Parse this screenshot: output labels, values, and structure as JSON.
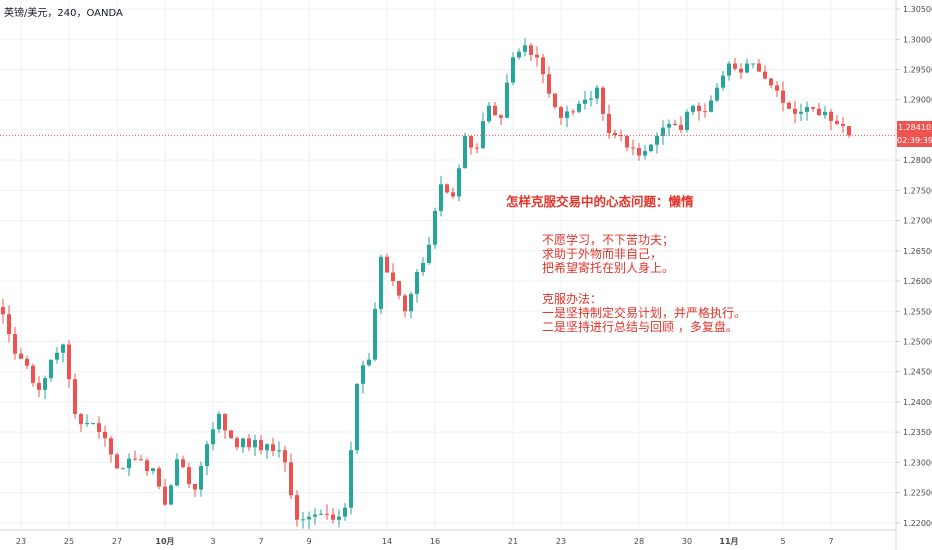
{
  "symbol": {
    "label": "英镑/美元，240，OANDA"
  },
  "annotations": {
    "title": "怎样克服交易中的心态问题：懒惰",
    "lines": [
      "不愿学习，不下苦功夫；",
      "求助于外物而非自己，",
      "把希望寄托在别人身上。",
      "",
      "克服办法：",
      "一是坚持制定交易计划，并严格执行。",
      "二是坚持进行总结与回顾 ，多复盘。"
    ]
  },
  "price_tag": {
    "price": "1.28410",
    "countdown": "02:39:39"
  },
  "colors": {
    "up": "#26a69a",
    "down": "#ef5350",
    "grid": "#eef0f3",
    "axis_text": "#4a4a4a",
    "annotation": "#e5332a",
    "last_price_line": "#ef5350"
  },
  "chart_data": {
    "type": "candlestick",
    "interval": "240",
    "source": "OANDA",
    "ylim": [
      1.2155,
      1.3065
    ],
    "y_ticks": [
      1.22,
      1.225,
      1.23,
      1.235,
      1.24,
      1.245,
      1.25,
      1.255,
      1.26,
      1.265,
      1.27,
      1.275,
      1.28,
      1.285,
      1.29,
      1.295,
      1.3,
      1.305
    ],
    "x_ticks": [
      {
        "label": "23",
        "bar": 3
      },
      {
        "label": "25",
        "bar": 11
      },
      {
        "label": "27",
        "bar": 19
      },
      {
        "label": "10月",
        "bar": 27
      },
      {
        "label": "3",
        "bar": 35
      },
      {
        "label": "7",
        "bar": 43
      },
      {
        "label": "9",
        "bar": 51
      },
      {
        "label": "14",
        "bar": 64
      },
      {
        "label": "16",
        "bar": 72
      },
      {
        "label": "21",
        "bar": 85
      },
      {
        "label": "23",
        "bar": 93
      },
      {
        "label": "28",
        "bar": 106
      },
      {
        "label": "30",
        "bar": 114
      },
      {
        "label": "11月",
        "bar": 121
      },
      {
        "label": "5",
        "bar": 130
      },
      {
        "label": "7",
        "bar": 138
      }
    ],
    "last_price": 1.2841,
    "anchors": [
      [
        0,
        1.2545
      ],
      [
        2,
        1.248
      ],
      [
        4,
        1.246
      ],
      [
        6,
        1.242
      ],
      [
        8,
        1.247
      ],
      [
        10,
        1.2495
      ],
      [
        12,
        1.238
      ],
      [
        14,
        1.2365
      ],
      [
        17,
        1.234
      ],
      [
        19,
        1.229
      ],
      [
        22,
        1.2305
      ],
      [
        25,
        1.229
      ],
      [
        27,
        1.223
      ],
      [
        29,
        1.2305
      ],
      [
        32,
        1.2255
      ],
      [
        34,
        1.233
      ],
      [
        36,
        1.238
      ],
      [
        38,
        1.234
      ],
      [
        41,
        1.2325
      ],
      [
        44,
        1.233
      ],
      [
        47,
        1.23
      ],
      [
        49,
        1.2205
      ],
      [
        51,
        1.221
      ],
      [
        53,
        1.2215
      ],
      [
        55,
        1.2205
      ],
      [
        57,
        1.2225
      ],
      [
        59,
        1.243
      ],
      [
        61,
        1.247
      ],
      [
        63,
        1.264
      ],
      [
        65,
        1.26
      ],
      [
        67,
        1.255
      ],
      [
        69,
        1.2615
      ],
      [
        71,
        1.266
      ],
      [
        73,
        1.276
      ],
      [
        75,
        1.274
      ],
      [
        77,
        1.284
      ],
      [
        79,
        1.282
      ],
      [
        81,
        1.289
      ],
      [
        83,
        1.287
      ],
      [
        85,
        1.297
      ],
      [
        87,
        1.299
      ],
      [
        89,
        1.297
      ],
      [
        91,
        1.291
      ],
      [
        93,
        1.287
      ],
      [
        95,
        1.288
      ],
      [
        97,
        1.29
      ],
      [
        99,
        1.292
      ],
      [
        101,
        1.2845
      ],
      [
        103,
        1.284
      ],
      [
        105,
        1.282
      ],
      [
        107,
        1.2815
      ],
      [
        109,
        1.284
      ],
      [
        111,
        1.286
      ],
      [
        113,
        1.285
      ],
      [
        115,
        1.289
      ],
      [
        117,
        1.288
      ],
      [
        119,
        1.292
      ],
      [
        121,
        1.296
      ],
      [
        123,
        1.2945
      ],
      [
        125,
        1.296
      ],
      [
        127,
        1.2935
      ],
      [
        129,
        1.2915
      ],
      [
        131,
        1.2885
      ],
      [
        133,
        1.288
      ],
      [
        135,
        1.2885
      ],
      [
        137,
        1.288
      ],
      [
        139,
        1.286
      ],
      [
        141,
        1.2841
      ]
    ]
  }
}
